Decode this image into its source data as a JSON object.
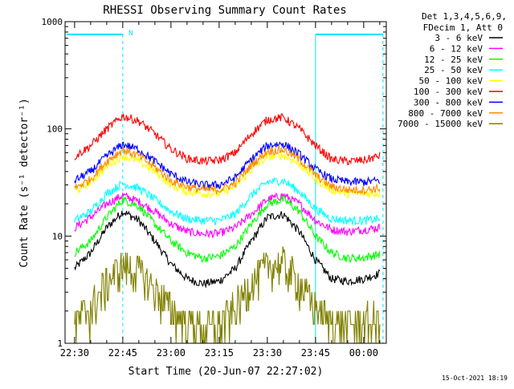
{
  "colors": {
    "background": "#ffffff",
    "axis": "#000000",
    "night": "#00e5ff",
    "saa": "#00e5ff"
  },
  "chart_data": {
    "type": "line",
    "title": "RHESSI Observing Summary Count Rates",
    "xlabel": "Start Time (20-Jun-07 22:27:02)",
    "ylabel": "Count Rate (s⁻¹ detector⁻¹)",
    "y_scale": "log",
    "ylim": [
      1,
      1000
    ],
    "xlim": [
      "22:27:02",
      "00:07:02"
    ],
    "x_ticks": [
      "22:30",
      "22:45",
      "23:00",
      "23:15",
      "23:30",
      "23:45",
      "00:00"
    ],
    "y_ticks": [
      {
        "value": 1,
        "label": "1"
      },
      {
        "value": 10,
        "label": "10"
      },
      {
        "value": 100,
        "label": "100"
      },
      {
        "value": 1000,
        "label": "1000"
      }
    ],
    "legend_position": "top-right",
    "legend_header": [
      "Det 1,3,4,5,6,9,",
      "FDecim 1, Att 0"
    ],
    "timestamp": "15-Oct-2021 18:19",
    "saa_marker": "N",
    "night_intervals": [
      {
        "start": "22:27:02",
        "end": "22:45:00"
      },
      {
        "start": "23:45:00",
        "end": "00:06:00"
      }
    ],
    "x": [
      "22:30",
      "22:35",
      "22:40",
      "22:45",
      "22:50",
      "22:55",
      "23:00",
      "23:05",
      "23:10",
      "23:15",
      "23:20",
      "23:25",
      "23:30",
      "23:35",
      "23:40",
      "23:45",
      "23:50",
      "23:55",
      "00:00",
      "00:05"
    ],
    "series": [
      {
        "name": "3 - 6 keV",
        "color": "#000000",
        "values": [
          5,
          7,
          12,
          17,
          14,
          9,
          5.5,
          4,
          3.6,
          3.8,
          5,
          9,
          15,
          16,
          11,
          6,
          4,
          3.8,
          4,
          4.5
        ]
      },
      {
        "name": "6 - 12 keV",
        "color": "#ff00ff",
        "values": [
          12,
          15,
          20,
          24,
          21,
          17,
          13,
          11,
          10.5,
          10.6,
          12,
          16,
          22,
          24,
          20,
          14,
          11.5,
          11,
          11.5,
          12
        ]
      },
      {
        "name": "12 - 25 keV",
        "color": "#00ff00",
        "values": [
          7,
          9,
          15,
          22,
          19,
          13,
          9,
          7,
          6.2,
          6.5,
          8,
          13,
          20,
          22,
          17,
          10,
          7,
          6.2,
          6.3,
          6.8
        ]
      },
      {
        "name": "25 - 50 keV",
        "color": "#00ffff",
        "values": [
          14,
          17,
          25,
          31,
          28,
          22,
          17,
          14.5,
          14,
          14,
          16,
          24,
          32,
          33,
          26,
          18,
          14.5,
          14,
          14,
          14.5
        ]
      },
      {
        "name": "50 - 100 keV",
        "color": "#ffff00",
        "values": [
          26,
          32,
          45,
          56,
          50,
          40,
          30,
          26,
          25,
          25,
          29,
          42,
          55,
          57,
          47,
          34,
          27,
          25,
          25,
          25
        ]
      },
      {
        "name": "100 - 300 keV",
        "color": "#ff0000",
        "values": [
          55,
          70,
          100,
          132,
          118,
          90,
          65,
          53,
          50,
          51,
          60,
          90,
          122,
          128,
          100,
          70,
          52,
          50,
          51,
          56
        ]
      },
      {
        "name": "300 - 800 keV",
        "color": "#0000ff",
        "values": [
          33,
          40,
          56,
          72,
          64,
          50,
          38,
          32,
          30,
          30,
          35,
          52,
          70,
          73,
          58,
          42,
          34,
          32,
          32,
          33
        ]
      },
      {
        "name": "800 - 7000 keV",
        "color": "#ff8800",
        "values": [
          28,
          34,
          50,
          64,
          56,
          44,
          33,
          29,
          27,
          27,
          31,
          46,
          62,
          64,
          52,
          37,
          29,
          27,
          27,
          28
        ]
      },
      {
        "name": "7000 - 15000 keV",
        "color": "#808000",
        "values": [
          1.4,
          2,
          3.5,
          5,
          4.5,
          3,
          2,
          1.5,
          1.3,
          1.4,
          2,
          3.5,
          5,
          5.2,
          3.5,
          2,
          1.5,
          1.4,
          1.5,
          1.6
        ]
      }
    ]
  }
}
